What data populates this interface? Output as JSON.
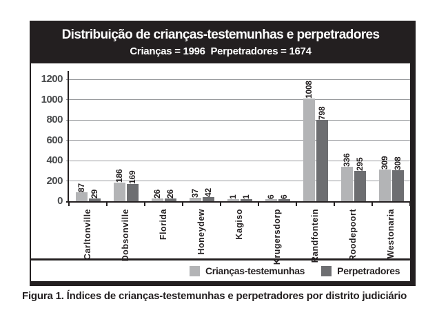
{
  "header": {
    "title": "Distribuição de crianças-testemunhas e perpetradores",
    "subtitle": "Crianças = 1996  Perpetradores = 1674"
  },
  "caption": "Figura 1. Índices de crianças-testemunhas e perpetradores por distrito judiciário",
  "colors": {
    "frame_black": "#231f20",
    "gridline": "#97999c",
    "series_light": "#b3b4b6",
    "series_dark": "#6d6e71"
  },
  "chart_data": {
    "type": "bar",
    "title": "Distribuição de crianças-testemunhas e perpetradores",
    "subtitle": "Crianças = 1996  Perpetradores = 1674",
    "categories": [
      "Carltonville",
      "Dobsonville",
      "Florida",
      "Honeydew",
      "Kagiso",
      "Krugersdorp",
      "Randfontein",
      "Roodepoort",
      "Westonaria"
    ],
    "series": [
      {
        "name": "Crianças-testemunhas",
        "color": "#b3b4b6",
        "values": [
          87,
          186,
          26,
          37,
          1,
          6,
          1008,
          336,
          309
        ]
      },
      {
        "name": "Perpetradores",
        "color": "#6d6e71",
        "values": [
          29,
          169,
          26,
          42,
          1,
          6,
          798,
          295,
          308
        ]
      }
    ],
    "totals": {
      "criancas": 1996,
      "perpetradores": 1674
    },
    "xlabel": "",
    "ylabel": "",
    "ylim": [
      0,
      1200
    ],
    "yticks": [
      0,
      200,
      400,
      600,
      800,
      1000,
      1200
    ],
    "grid": true,
    "bar_value_labels": "rotated-90",
    "category_labels": "rotated-90",
    "legend_position": "bottom"
  }
}
